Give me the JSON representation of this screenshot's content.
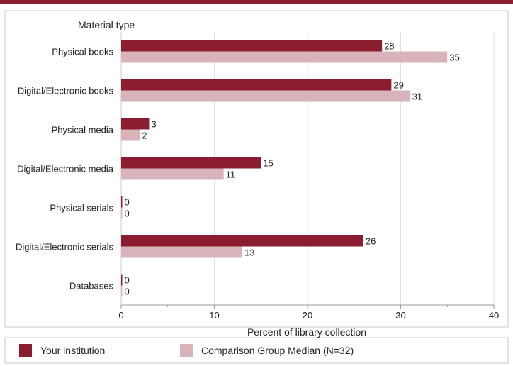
{
  "chart_data": {
    "type": "bar",
    "orientation": "horizontal",
    "category_axis_title": "Material type",
    "xlabel": "Percent of library collection",
    "xlim": [
      0,
      40
    ],
    "xticks": [
      0,
      10,
      20,
      30,
      40
    ],
    "grid": true,
    "legend_placement": "bottom",
    "categories": [
      "Physical books",
      "Digital/Electronic books",
      "Physical media",
      "Digital/Electronic media",
      "Physical serials",
      "Digital/Electronic serials",
      "Databases"
    ],
    "series": [
      {
        "name": "Your institution",
        "color": "#8a1e30",
        "values": [
          28,
          29,
          3,
          15,
          0,
          26,
          0
        ]
      },
      {
        "name": "Comparison Group Median (N=32)",
        "color": "#d9b3ba",
        "values": [
          35,
          31,
          2,
          11,
          0,
          13,
          0
        ]
      }
    ]
  }
}
